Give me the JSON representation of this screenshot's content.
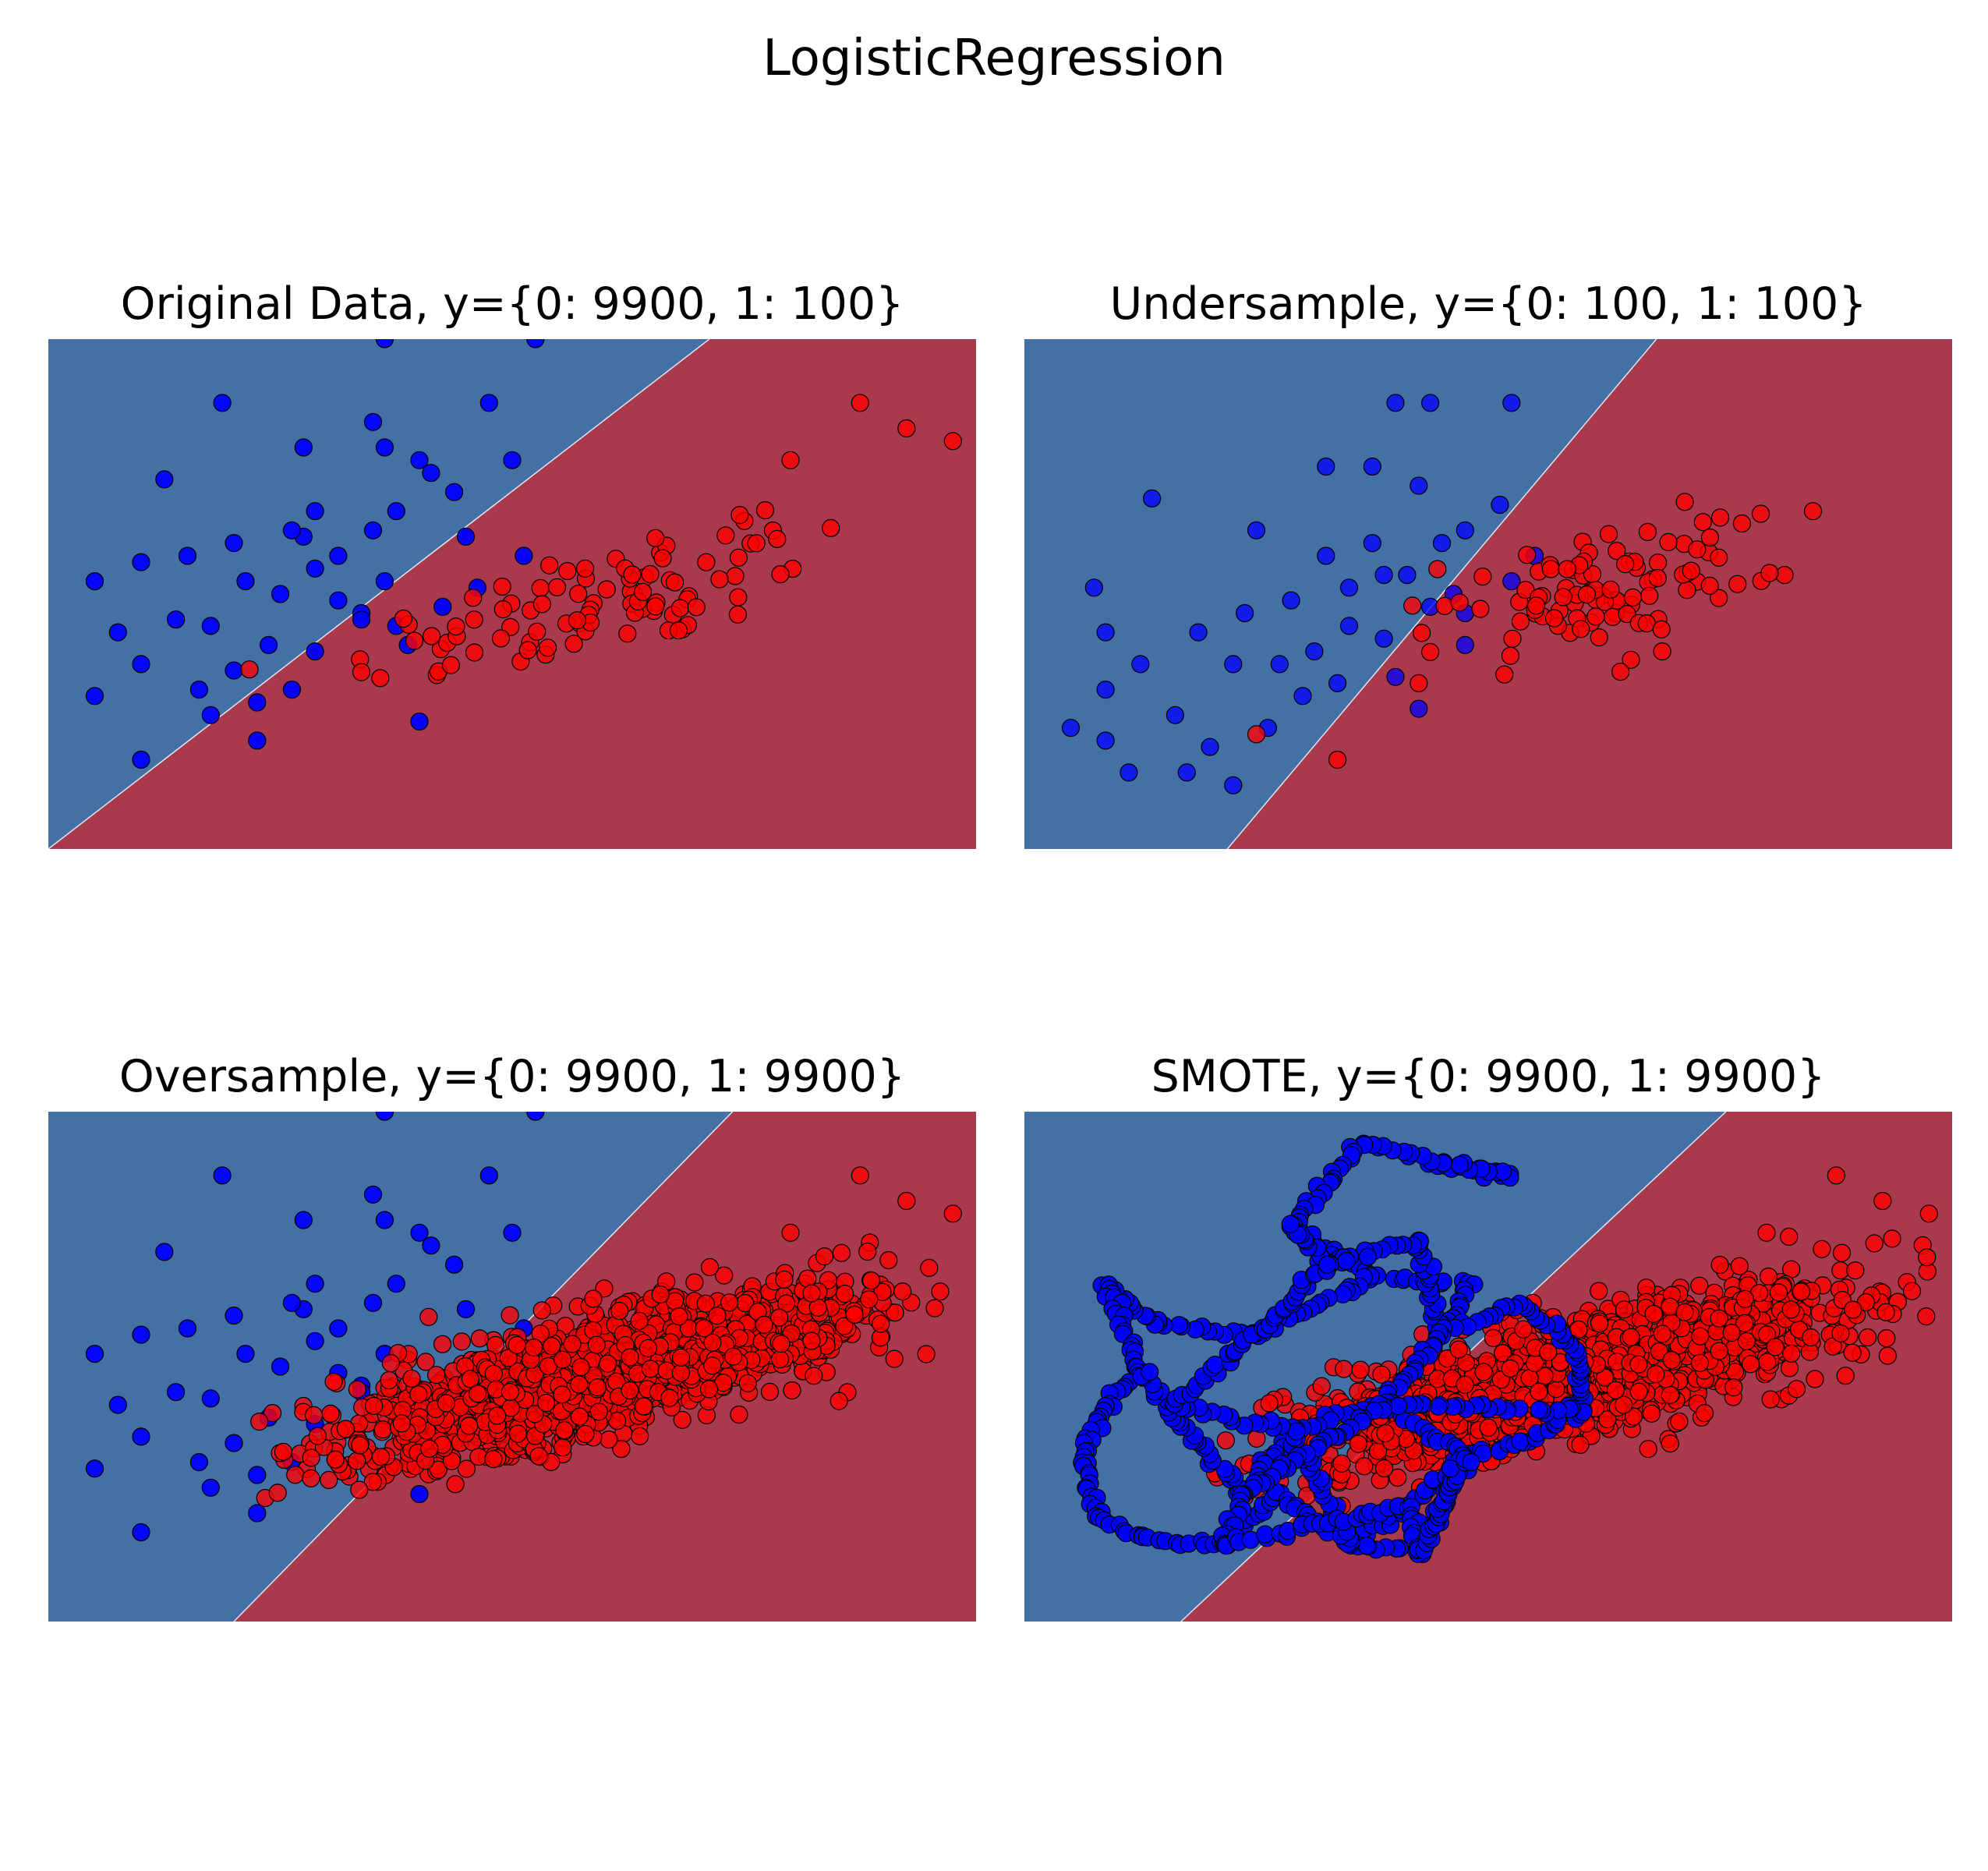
{
  "suptitle": "LogisticRegression",
  "colors": {
    "region_class_0": "#4471a5",
    "region_class_1": "#a93a4d",
    "points_class_0": "#0000ff",
    "points_class_1": "#ff0000",
    "point_edge": "#000000"
  },
  "chart_data": [
    {
      "type": "scatter",
      "title": "Original Data, y={0: 9900, 1: 100}",
      "xlim": [
        -4,
        4
      ],
      "ylim": [
        -4,
        4
      ],
      "axis_visible": false,
      "decision_boundary": [
        [
          -4.0,
          -4.0
        ],
        [
          1.7,
          4.0
        ]
      ],
      "class_0": {
        "count_label": 9900,
        "points": [
          [
            -2.5,
            3.0
          ],
          [
            -1.1,
            4.0
          ],
          [
            -1.2,
            2.7
          ],
          [
            -1.1,
            2.3
          ],
          [
            0.2,
            4.0
          ],
          [
            0.0,
            2.1
          ],
          [
            -3.0,
            1.8
          ],
          [
            -2.4,
            0.8
          ],
          [
            -2.3,
            0.2
          ],
          [
            -2.8,
            0.6
          ],
          [
            -3.4,
            -0.6
          ],
          [
            -3.2,
            -1.1
          ],
          [
            -3.6,
            0.2
          ],
          [
            -3.2,
            0.5
          ],
          [
            -3.6,
            -1.6
          ],
          [
            -3.2,
            -2.6
          ],
          [
            -2.7,
            -1.5
          ],
          [
            -2.6,
            -1.9
          ],
          [
            -1.8,
            0.9
          ],
          [
            -1.7,
            0.4
          ],
          [
            -1.5,
            -0.1
          ],
          [
            -1.7,
            -0.9
          ],
          [
            -1.9,
            -1.5
          ],
          [
            -2.2,
            -1.7
          ],
          [
            -2.6,
            -0.5
          ],
          [
            -1.2,
            1.0
          ],
          [
            -1.1,
            0.2
          ],
          [
            -1.3,
            -0.3
          ],
          [
            -0.9,
            -0.8
          ],
          [
            -0.5,
            1.6
          ],
          [
            -0.7,
            1.9
          ],
          [
            -0.2,
            3.0
          ],
          [
            -0.8,
            2.1
          ],
          [
            -1.7,
            1.3
          ],
          [
            -1.8,
            2.3
          ],
          [
            -2.1,
            -0.8
          ],
          [
            -2.2,
            -2.3
          ],
          [
            -1.3,
            -0.4
          ],
          [
            -1.0,
            -0.5
          ],
          [
            -0.6,
            -0.2
          ],
          [
            -0.8,
            -2.0
          ],
          [
            -2.0,
            0.0
          ],
          [
            -2.4,
            -1.2
          ],
          [
            -0.4,
            0.9
          ],
          [
            -0.3,
            0.1
          ],
          [
            0.1,
            0.6
          ],
          [
            -1.5,
            0.6
          ],
          [
            -1.0,
            1.3
          ],
          [
            -1.9,
            1.0
          ],
          [
            -2.9,
            -0.4
          ]
        ]
      },
      "class_1": {
        "count_label": 100,
        "cloud": {
          "x_range": [
            -2.4,
            3.8
          ],
          "center": [
            0.8,
            -0.1
          ],
          "major_sigma": 1.25,
          "minor_sigma": 0.42,
          "angle_deg": 27.9
        },
        "outliers": [
          [
            3.0,
            3.0
          ],
          [
            3.4,
            2.6
          ],
          [
            3.8,
            2.4
          ],
          [
            2.4,
            2.1
          ]
        ]
      }
    },
    {
      "type": "scatter",
      "title": "Undersample, y={0: 100, 1: 100}",
      "xlim": [
        -4,
        4
      ],
      "ylim": [
        -4,
        4
      ],
      "axis_visible": false,
      "decision_boundary": [
        [
          -2.25,
          -4.0
        ],
        [
          1.45,
          4.0
        ]
      ],
      "class_0": {
        "count_label": 100,
        "points": [
          [
            -0.8,
            3.0
          ],
          [
            -0.5,
            3.0
          ],
          [
            0.2,
            3.0
          ],
          [
            -1.0,
            2.0
          ],
          [
            -1.4,
            2.0
          ],
          [
            -0.6,
            1.7
          ],
          [
            0.1,
            1.4
          ],
          [
            -2.9,
            1.5
          ],
          [
            -2.0,
            1.0
          ],
          [
            -1.4,
            0.6
          ],
          [
            -1.0,
            0.8
          ],
          [
            -0.7,
            0.3
          ],
          [
            -0.3,
            0.0
          ],
          [
            -0.5,
            -0.2
          ],
          [
            -1.2,
            -0.5
          ],
          [
            -0.9,
            -0.7
          ],
          [
            -1.5,
            -0.9
          ],
          [
            -1.8,
            -1.1
          ],
          [
            -2.2,
            -1.1
          ],
          [
            -2.5,
            -0.6
          ],
          [
            -3.4,
            0.1
          ],
          [
            -3.3,
            -0.6
          ],
          [
            -3.0,
            -1.1
          ],
          [
            -3.3,
            -1.5
          ],
          [
            -3.6,
            -2.1
          ],
          [
            -2.7,
            -1.9
          ],
          [
            -2.4,
            -2.4
          ],
          [
            -2.6,
            -2.8
          ],
          [
            -2.2,
            -3.0
          ],
          [
            -3.1,
            -2.8
          ],
          [
            -3.3,
            -2.3
          ],
          [
            -1.7,
            -0.1
          ],
          [
            -2.1,
            -0.3
          ],
          [
            -1.2,
            0.1
          ],
          [
            -0.9,
            0.3
          ],
          [
            -0.4,
            0.8
          ],
          [
            -0.2,
            1.0
          ],
          [
            0.2,
            0.2
          ],
          [
            0.4,
            0.6
          ],
          [
            -0.2,
            -0.8
          ],
          [
            -0.8,
            -1.3
          ],
          [
            -1.6,
            -1.6
          ],
          [
            -1.9,
            -2.1
          ],
          [
            -0.6,
            -1.8
          ],
          [
            -1.3,
            -1.4
          ],
          [
            -0.2,
            -0.3
          ]
        ]
      },
      "class_1": {
        "count_label": 100,
        "cloud": {
          "x_range": [
            -0.7,
            2.6
          ],
          "center": [
            0.9,
            0.0
          ],
          "major_sigma": 0.85,
          "minor_sigma": 0.42,
          "angle_deg": 27.9
        },
        "outliers": [
          [
            2.8,
            1.3
          ],
          [
            2.0,
            1.2
          ],
          [
            1.8,
            0.7
          ],
          [
            -2.0,
            -2.2
          ],
          [
            -1.3,
            -2.6
          ],
          [
            -0.6,
            -1.4
          ],
          [
            1.5,
            -0.9
          ]
        ]
      }
    },
    {
      "type": "scatter",
      "title": "Oversample, y={0: 9900, 1: 9900}",
      "xlim": [
        -4,
        4
      ],
      "ylim": [
        -4,
        4
      ],
      "axis_visible": false,
      "decision_boundary": [
        [
          -2.4,
          -4.0
        ],
        [
          1.9,
          4.0
        ]
      ],
      "class_0": {
        "count_label": 9900,
        "points": [
          [
            -2.5,
            3.0
          ],
          [
            -1.1,
            4.0
          ],
          [
            -1.2,
            2.7
          ],
          [
            -1.1,
            2.3
          ],
          [
            0.2,
            4.0
          ],
          [
            0.0,
            2.1
          ],
          [
            -3.0,
            1.8
          ],
          [
            -2.4,
            0.8
          ],
          [
            -2.3,
            0.2
          ],
          [
            -2.8,
            0.6
          ],
          [
            -3.4,
            -0.6
          ],
          [
            -3.2,
            -1.1
          ],
          [
            -3.6,
            0.2
          ],
          [
            -3.2,
            0.5
          ],
          [
            -3.6,
            -1.6
          ],
          [
            -3.2,
            -2.6
          ],
          [
            -2.7,
            -1.5
          ],
          [
            -2.6,
            -1.9
          ],
          [
            -1.8,
            0.9
          ],
          [
            -1.7,
            0.4
          ],
          [
            -1.5,
            -0.1
          ],
          [
            -1.7,
            -0.9
          ],
          [
            -1.9,
            -1.5
          ],
          [
            -2.2,
            -1.7
          ],
          [
            -2.6,
            -0.5
          ],
          [
            -1.2,
            1.0
          ],
          [
            -1.1,
            0.2
          ],
          [
            -1.3,
            -0.3
          ],
          [
            -0.9,
            -0.8
          ],
          [
            -0.5,
            1.6
          ],
          [
            -0.7,
            1.9
          ],
          [
            -0.2,
            3.0
          ],
          [
            -0.8,
            2.1
          ],
          [
            -1.7,
            1.3
          ],
          [
            -1.8,
            2.3
          ],
          [
            -2.1,
            -0.8
          ],
          [
            -2.2,
            -2.3
          ],
          [
            -1.3,
            -0.4
          ],
          [
            -1.0,
            -0.5
          ],
          [
            -0.6,
            -0.2
          ],
          [
            -0.8,
            -2.0
          ],
          [
            -2.0,
            0.0
          ],
          [
            -2.4,
            -1.2
          ],
          [
            -0.4,
            0.9
          ],
          [
            -0.3,
            0.1
          ],
          [
            0.1,
            0.6
          ],
          [
            -1.5,
            0.6
          ],
          [
            -1.0,
            1.3
          ],
          [
            -1.9,
            1.0
          ],
          [
            -2.9,
            -0.4
          ]
        ]
      },
      "class_1": {
        "count_label": 9900,
        "cloud": {
          "x_range": [
            -2.4,
            3.8
          ],
          "center": [
            0.8,
            -0.1
          ],
          "major_sigma": 1.25,
          "minor_sigma": 0.42,
          "angle_deg": 27.9
        },
        "outliers": [
          [
            3.0,
            3.0
          ],
          [
            3.4,
            2.6
          ],
          [
            3.8,
            2.4
          ],
          [
            2.4,
            2.1
          ]
        ]
      }
    },
    {
      "type": "scatter",
      "title": "SMOTE, y={0: 9900, 1: 9900}",
      "xlim": [
        -4,
        4
      ],
      "ylim": [
        -4,
        4
      ],
      "axis_visible": false,
      "decision_boundary": [
        [
          -2.65,
          -4.0
        ],
        [
          2.05,
          4.0
        ]
      ],
      "class_0": {
        "count_label": 9900,
        "anchors": [
          [
            -0.5,
            3.2
          ],
          [
            0.2,
            3.0
          ],
          [
            -1.1,
            3.5
          ],
          [
            -1.7,
            2.2
          ],
          [
            -1.0,
            1.4
          ],
          [
            -0.2,
            1.3
          ],
          [
            -0.4,
            0.5
          ],
          [
            -0.9,
            -0.6
          ],
          [
            -1.7,
            -1.0
          ],
          [
            -2.1,
            -2.0
          ],
          [
            -2.5,
            -1.2
          ],
          [
            -3.0,
            -0.1
          ],
          [
            -3.3,
            -0.6
          ],
          [
            -3.5,
            -1.5
          ],
          [
            -3.4,
            -2.3
          ],
          [
            -3.0,
            -2.7
          ],
          [
            -2.3,
            -2.8
          ],
          [
            -1.8,
            -2.0
          ],
          [
            -1.2,
            -2.8
          ],
          [
            -0.7,
            -2.2
          ],
          [
            -0.2,
            -1.4
          ],
          [
            0.3,
            -1.2
          ],
          [
            0.8,
            -0.7
          ],
          [
            0.8,
            0.2
          ],
          [
            0.3,
            1.0
          ],
          [
            -0.6,
            2.0
          ],
          [
            -1.4,
            1.6
          ],
          [
            -2.0,
            0.5
          ],
          [
            -2.9,
            0.7
          ],
          [
            -3.3,
            1.3
          ],
          [
            -2.7,
            -0.6
          ],
          [
            -0.6,
            -2.9
          ]
        ],
        "loops": [
          [
            0,
            1,
            2,
            3,
            4,
            5,
            6,
            25,
            26,
            3
          ],
          [
            4,
            27,
            28,
            29,
            11,
            12,
            13,
            14,
            15,
            16,
            17,
            18,
            19,
            20,
            21,
            22,
            23,
            24,
            6,
            7,
            8,
            9,
            10,
            11
          ],
          [
            7,
            20,
            31,
            18,
            8,
            30,
            27,
            26
          ],
          [
            22,
            7,
            9,
            16,
            19,
            31,
            20
          ]
        ]
      },
      "class_1": {
        "count_label": 9900,
        "cloud": {
          "x_range": [
            -2.4,
            3.8
          ],
          "center": [
            0.8,
            -0.1
          ],
          "major_sigma": 1.25,
          "minor_sigma": 0.42,
          "angle_deg": 27.9
        },
        "outliers": [
          [
            3.0,
            3.0
          ],
          [
            3.4,
            2.6
          ],
          [
            3.8,
            2.4
          ],
          [
            2.4,
            2.1
          ]
        ]
      }
    }
  ]
}
